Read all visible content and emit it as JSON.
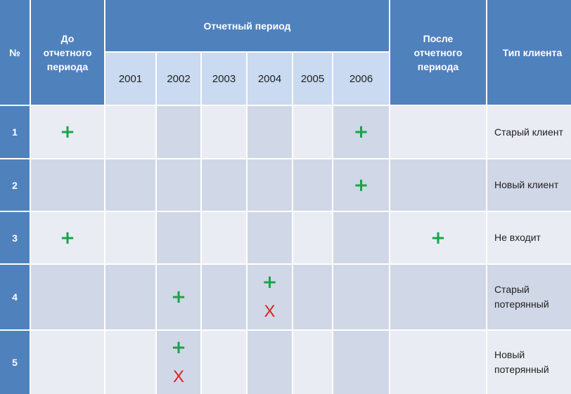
{
  "header": {
    "num": "№",
    "before": "До\nотчетного\nпериода",
    "report": "Отчетный период",
    "after": "После\nотчетного\nпериода",
    "type": "Тип клиента",
    "years": [
      "2001",
      "2002",
      "2003",
      "2004",
      "2005",
      "2006"
    ]
  },
  "marks": {
    "plus": "+",
    "cross": "X"
  },
  "rows": [
    {
      "num": "1",
      "type": "Старый клиент"
    },
    {
      "num": "2",
      "type": "Новый клиент"
    },
    {
      "num": "3",
      "type": "Не входит"
    },
    {
      "num": "4",
      "type": "Старый\nпотерянный"
    },
    {
      "num": "5",
      "type": "Новый\nпотерянный"
    }
  ]
}
